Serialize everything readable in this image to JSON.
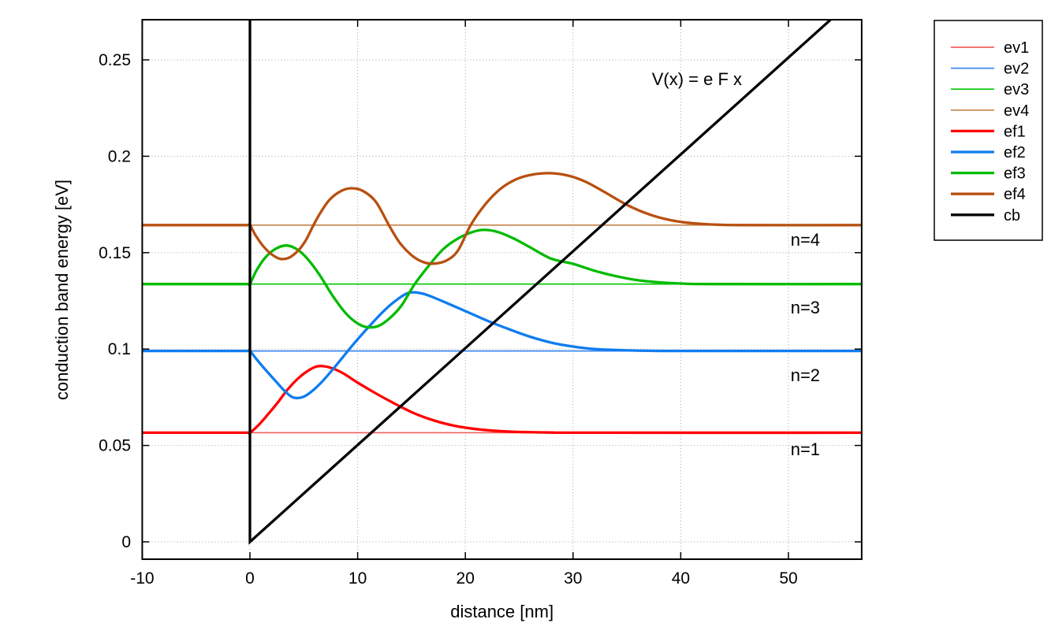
{
  "figure": {
    "background": "#ffffff",
    "accent_black": "#000000"
  },
  "chart_data": {
    "type": "line",
    "title": "",
    "xlabel": "distance [nm]",
    "ylabel": "conduction band energy [eV]",
    "xlim": [
      -10,
      56.8
    ],
    "ylim": [
      -0.009,
      0.2708
    ],
    "xticks": [
      -10,
      0,
      10,
      20,
      30,
      40,
      50
    ],
    "xtick_labels": [
      "-10",
      "0",
      "10",
      "20",
      "30",
      "40",
      "50"
    ],
    "yticks": [
      0,
      0.05,
      0.1,
      0.15,
      0.2,
      0.25
    ],
    "ytick_labels": [
      "0",
      "0.05",
      "0.1",
      "0.15",
      "0.2",
      "0.25"
    ],
    "grid": true,
    "legend_position": "outside-top-right",
    "eigenvalues_eV": {
      "E1": 0.0566,
      "E2": 0.099,
      "E3": 0.1337,
      "E4": 0.1643
    },
    "annotations": [
      {
        "id": "potential-formula",
        "text": "V(x) = e F x",
        "x": 41.5,
        "y": 0.2369,
        "color": "#000000",
        "anchor": "middle"
      },
      {
        "id": "level-4",
        "text": "n=4",
        "x": 50.2,
        "y": 0.1536,
        "color": "#bf500f",
        "anchor": "start"
      },
      {
        "id": "level-3",
        "text": "n=3",
        "x": 50.2,
        "y": 0.1185,
        "color": "#00bb00",
        "anchor": "start"
      },
      {
        "id": "level-2",
        "text": "n=2",
        "x": 50.2,
        "y": 0.0833,
        "color": "#0f7cf0",
        "anchor": "start"
      },
      {
        "id": "level-1",
        "text": "n=1",
        "x": 50.2,
        "y": 0.0449,
        "color": "#ff0000",
        "anchor": "start"
      }
    ],
    "series": [
      {
        "name": "ev1",
        "kind": "hline",
        "y": 0.0566,
        "color": "#f25f5f",
        "width": 1.7
      },
      {
        "name": "ev2",
        "kind": "hline",
        "y": 0.099,
        "color": "#3d8af0",
        "width": 1.7
      },
      {
        "name": "ev3",
        "kind": "hline",
        "y": 0.1337,
        "color": "#00c800",
        "width": 1.7
      },
      {
        "name": "ev4",
        "kind": "hline",
        "y": 0.1643,
        "color": "#c5854c",
        "width": 1.7
      },
      {
        "name": "ef1",
        "kind": "curve",
        "color": "#ff0000",
        "width": 3.3,
        "points": [
          [
            -10,
            0.0566
          ],
          [
            -4,
            0.0566
          ],
          [
            -1,
            0.0566
          ],
          [
            -0.2,
            0.0566
          ],
          [
            0,
            0.0566
          ],
          [
            0.8,
            0.0606
          ],
          [
            1.7,
            0.0663
          ],
          [
            2.6,
            0.0724
          ],
          [
            3.5,
            0.079
          ],
          [
            4.4,
            0.0844
          ],
          [
            5.4,
            0.0888
          ],
          [
            6.3,
            0.0911
          ],
          [
            7.3,
            0.0906
          ],
          [
            8.5,
            0.0879
          ],
          [
            10,
            0.0826
          ],
          [
            11.5,
            0.0776
          ],
          [
            13,
            0.073
          ],
          [
            15,
            0.0673
          ],
          [
            17,
            0.0631
          ],
          [
            19,
            0.0602
          ],
          [
            21,
            0.0585
          ],
          [
            23,
            0.0575
          ],
          [
            25,
            0.057
          ],
          [
            28,
            0.0567
          ],
          [
            31,
            0.0566
          ],
          [
            56.8,
            0.0566
          ]
        ]
      },
      {
        "name": "ef2",
        "kind": "curve",
        "color": "#0f7cf0",
        "width": 3.3,
        "points": [
          [
            -10,
            0.099
          ],
          [
            -4,
            0.099
          ],
          [
            -1,
            0.099
          ],
          [
            -0.2,
            0.099
          ],
          [
            0,
            0.099
          ],
          [
            0.7,
            0.0941
          ],
          [
            1.5,
            0.0889
          ],
          [
            2.4,
            0.0833
          ],
          [
            3.2,
            0.0784
          ],
          [
            4,
            0.0749
          ],
          [
            4.9,
            0.0751
          ],
          [
            5.7,
            0.0779
          ],
          [
            6.7,
            0.0831
          ],
          [
            7.7,
            0.0895
          ],
          [
            8.7,
            0.0963
          ],
          [
            9.8,
            0.1038
          ],
          [
            11,
            0.1113
          ],
          [
            12.2,
            0.1185
          ],
          [
            13.4,
            0.1245
          ],
          [
            14.7,
            0.1291
          ],
          [
            16,
            0.1288
          ],
          [
            17.3,
            0.1262
          ],
          [
            18.6,
            0.1231
          ],
          [
            20,
            0.1197
          ],
          [
            22,
            0.1148
          ],
          [
            24,
            0.1104
          ],
          [
            26,
            0.1064
          ],
          [
            28,
            0.1033
          ],
          [
            30,
            0.1013
          ],
          [
            32,
            0.1
          ],
          [
            34,
            0.0995
          ],
          [
            37,
            0.0991
          ],
          [
            40,
            0.099
          ],
          [
            56.8,
            0.099
          ]
        ]
      },
      {
        "name": "ef3",
        "kind": "curve",
        "color": "#00bb00",
        "width": 3.3,
        "points": [
          [
            -10,
            0.1337
          ],
          [
            -4,
            0.1337
          ],
          [
            -1,
            0.1337
          ],
          [
            -0.2,
            0.1337
          ],
          [
            0,
            0.1337
          ],
          [
            0.6,
            0.1407
          ],
          [
            1.4,
            0.1473
          ],
          [
            2.3,
            0.1517
          ],
          [
            3.3,
            0.1537
          ],
          [
            4.2,
            0.1523
          ],
          [
            5.2,
            0.1477
          ],
          [
            6.4,
            0.139
          ],
          [
            7.6,
            0.1283
          ],
          [
            8.8,
            0.1192
          ],
          [
            9.8,
            0.114
          ],
          [
            10.8,
            0.1114
          ],
          [
            11.9,
            0.1119
          ],
          [
            13,
            0.1161
          ],
          [
            14.1,
            0.1228
          ],
          [
            15.3,
            0.1337
          ],
          [
            16.6,
            0.1432
          ],
          [
            18,
            0.1521
          ],
          [
            19.4,
            0.1576
          ],
          [
            20.7,
            0.1608
          ],
          [
            21.8,
            0.1618
          ],
          [
            23.1,
            0.1606
          ],
          [
            24.5,
            0.1573
          ],
          [
            26,
            0.1528
          ],
          [
            28,
            0.1468
          ],
          [
            30,
            0.1442
          ],
          [
            32,
            0.1406
          ],
          [
            34,
            0.1378
          ],
          [
            36,
            0.1357
          ],
          [
            38,
            0.1346
          ],
          [
            40,
            0.134
          ],
          [
            43,
            0.1337
          ],
          [
            56.8,
            0.1337
          ]
        ]
      },
      {
        "name": "ef4",
        "kind": "curve",
        "color": "#b8500f",
        "width": 3.3,
        "points": [
          [
            -10,
            0.1643
          ],
          [
            -4,
            0.1643
          ],
          [
            -1,
            0.1643
          ],
          [
            -0.2,
            0.1643
          ],
          [
            0,
            0.1643
          ],
          [
            0.5,
            0.1592
          ],
          [
            1.2,
            0.1536
          ],
          [
            2,
            0.1492
          ],
          [
            2.8,
            0.1468
          ],
          [
            3.6,
            0.1473
          ],
          [
            4.5,
            0.1512
          ],
          [
            5.2,
            0.1565
          ],
          [
            5.9,
            0.1643
          ],
          [
            6.6,
            0.1712
          ],
          [
            7.4,
            0.1775
          ],
          [
            8.4,
            0.1818
          ],
          [
            9.4,
            0.1834
          ],
          [
            10.5,
            0.182
          ],
          [
            11.7,
            0.1763
          ],
          [
            12.9,
            0.1643
          ],
          [
            13.9,
            0.1552
          ],
          [
            15,
            0.1487
          ],
          [
            16,
            0.1453
          ],
          [
            17,
            0.1443
          ],
          [
            18.2,
            0.1458
          ],
          [
            19.3,
            0.151
          ],
          [
            20.5,
            0.1643
          ],
          [
            21.8,
            0.1747
          ],
          [
            23.2,
            0.1828
          ],
          [
            24.7,
            0.188
          ],
          [
            26.2,
            0.1905
          ],
          [
            27.9,
            0.1912
          ],
          [
            29.6,
            0.1899
          ],
          [
            31.2,
            0.1867
          ],
          [
            33,
            0.1812
          ],
          [
            35,
            0.1748
          ],
          [
            37,
            0.17
          ],
          [
            39,
            0.1669
          ],
          [
            41,
            0.1653
          ],
          [
            43.5,
            0.1645
          ],
          [
            46,
            0.1643
          ],
          [
            56.8,
            0.1643
          ]
        ]
      },
      {
        "name": "cb",
        "kind": "polyline",
        "color": "#000000",
        "width": 3.3,
        "points": [
          [
            0,
            0.2708
          ],
          [
            0,
            0
          ],
          [
            53.9,
            0.2708
          ]
        ]
      }
    ]
  }
}
